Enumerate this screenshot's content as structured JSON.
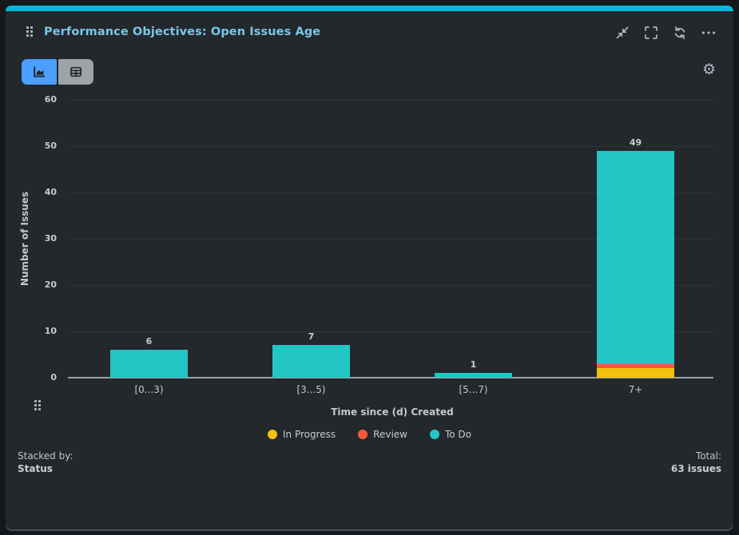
{
  "header": {
    "title": "Performance Objectives: Open Issues Age",
    "icons": [
      "collapse",
      "fullscreen",
      "refresh",
      "more"
    ]
  },
  "toolbar": {
    "views": [
      "chart",
      "table"
    ],
    "active_view": "chart",
    "settings_icon": "gear"
  },
  "chart_data": {
    "type": "bar",
    "stacked": true,
    "categories": [
      "[0...3)",
      "[3...5)",
      "[5...7)",
      "7+"
    ],
    "series": [
      {
        "name": "In Progress",
        "color": "#f2c00d",
        "values": [
          0,
          0,
          0,
          2
        ]
      },
      {
        "name": "Review",
        "color": "#f9583b",
        "values": [
          0,
          0,
          0,
          1
        ]
      },
      {
        "name": "To Do",
        "color": "#24c5c5",
        "values": [
          6,
          7,
          1,
          46
        ]
      }
    ],
    "totals": [
      6,
      7,
      1,
      49
    ],
    "xlabel": "Time since (d) Created",
    "ylabel": "Number of Issues",
    "ylim": [
      0,
      60
    ],
    "ytick_step": 10,
    "grid": true,
    "legend_position": "bottom"
  },
  "footer": {
    "stacked_by_label": "Stacked by:",
    "stacked_by_value": "Status",
    "total_label": "Total:",
    "total_value": "63 issues"
  },
  "colors": {
    "accent_bar": "#00b8d9",
    "card_background": "#23282c",
    "title_text": "#7ac6e8",
    "active_toggle": "#4c9fff",
    "inactive_toggle": "#9ea3a9",
    "axis_text": "#c6ccd2",
    "gridline": "#2e343a",
    "axis_line": "#9ba0a6"
  }
}
